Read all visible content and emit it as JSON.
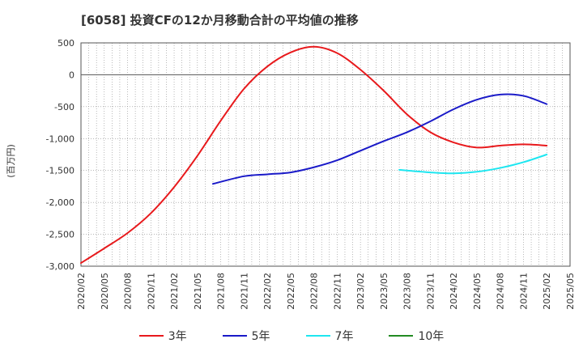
{
  "chart_data": {
    "type": "line",
    "title": "[6058]  投資CFの12か月移動合計の平均値の推移",
    "ylabel": "(百万円)",
    "ylim": [
      -3000,
      500
    ],
    "yticks": [
      500,
      0,
      -500,
      -1000,
      -1500,
      -2000,
      -2500,
      -3000
    ],
    "ytick_labels": [
      "500",
      "0",
      "-500",
      "-1,000",
      "-1,500",
      "-2,000",
      "-2,500",
      "-3,000"
    ],
    "x_start": "2020/02",
    "x_end": "2025/05",
    "xtick_labels": [
      "2020/02",
      "2020/05",
      "2020/08",
      "2020/11",
      "2021/02",
      "2021/05",
      "2021/08",
      "2021/11",
      "2022/02",
      "2022/05",
      "2022/08",
      "2022/11",
      "2023/02",
      "2023/05",
      "2023/08",
      "2023/11",
      "2024/02",
      "2024/05",
      "2024/08",
      "2024/11",
      "2025/02",
      "2025/05"
    ],
    "grid": true,
    "legend_position": "bottom",
    "series": [
      {
        "name": "3年",
        "color": "#e8191c",
        "points": [
          [
            "2020/02",
            -2950
          ],
          [
            "2020/05",
            -2720
          ],
          [
            "2020/08",
            -2480
          ],
          [
            "2020/11",
            -2170
          ],
          [
            "2021/02",
            -1760
          ],
          [
            "2021/05",
            -1270
          ],
          [
            "2021/08",
            -720
          ],
          [
            "2021/11",
            -220
          ],
          [
            "2022/02",
            130
          ],
          [
            "2022/05",
            350
          ],
          [
            "2022/08",
            440
          ],
          [
            "2022/11",
            340
          ],
          [
            "2023/02",
            80
          ],
          [
            "2023/05",
            -250
          ],
          [
            "2023/08",
            -620
          ],
          [
            "2023/11",
            -900
          ],
          [
            "2024/02",
            -1060
          ],
          [
            "2024/05",
            -1140
          ],
          [
            "2024/08",
            -1110
          ],
          [
            "2024/11",
            -1090
          ],
          [
            "2025/02",
            -1110
          ]
        ]
      },
      {
        "name": "5年",
        "color": "#1a1ac8",
        "points": [
          [
            "2021/07",
            -1710
          ],
          [
            "2021/11",
            -1590
          ],
          [
            "2022/02",
            -1560
          ],
          [
            "2022/05",
            -1530
          ],
          [
            "2022/08",
            -1450
          ],
          [
            "2022/11",
            -1340
          ],
          [
            "2023/02",
            -1190
          ],
          [
            "2023/05",
            -1040
          ],
          [
            "2023/08",
            -900
          ],
          [
            "2023/11",
            -730
          ],
          [
            "2024/02",
            -540
          ],
          [
            "2024/05",
            -390
          ],
          [
            "2024/08",
            -310
          ],
          [
            "2024/11",
            -330
          ],
          [
            "2025/02",
            -460
          ]
        ]
      },
      {
        "name": "7年",
        "color": "#1ee6f0",
        "points": [
          [
            "2023/07",
            -1490
          ],
          [
            "2023/11",
            -1530
          ],
          [
            "2024/02",
            -1545
          ],
          [
            "2024/05",
            -1520
          ],
          [
            "2024/08",
            -1460
          ],
          [
            "2024/11",
            -1370
          ],
          [
            "2025/02",
            -1250
          ]
        ]
      },
      {
        "name": "10年",
        "color": "#228b22",
        "points": []
      }
    ]
  }
}
